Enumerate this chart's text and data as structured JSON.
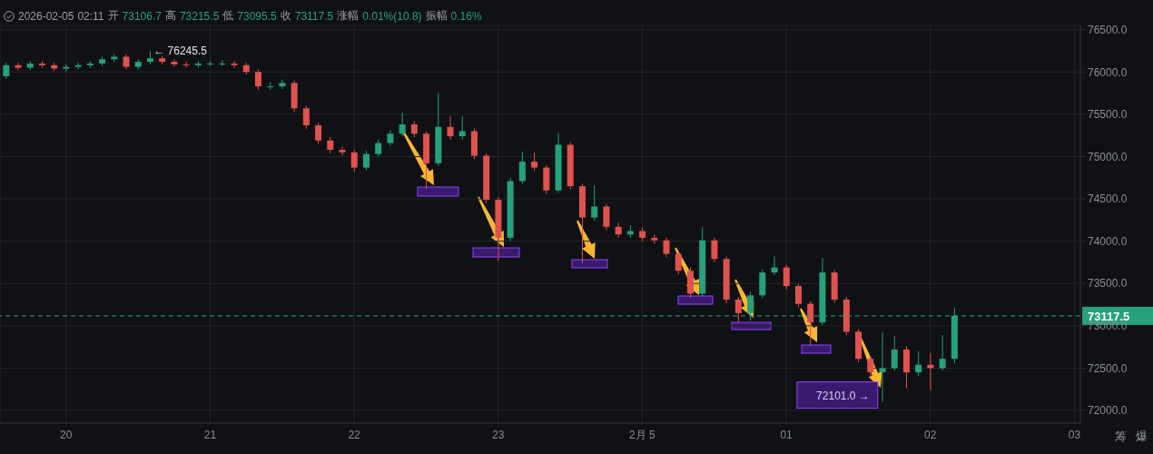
{
  "chart_data": {
    "type": "candlestick",
    "annotations": [
      "2026-02-05 02:11 开 73106.7 高 73215.5 低 73095.5 收 73117.5 涨幅 0.01%(10.8) 振幅 0.16%",
      "← 76245.5",
      "72101.0 →",
      "筹",
      "爆"
    ],
    "categories": [
      null,
      null,
      null,
      null,
      null,
      "20",
      null,
      null,
      null,
      null,
      null,
      null,
      null,
      null,
      null,
      null,
      null,
      "21",
      null,
      null,
      null,
      null,
      null,
      null,
      null,
      null,
      null,
      null,
      null,
      "22",
      null,
      null,
      null,
      null,
      null,
      null,
      null,
      null,
      null,
      null,
      null,
      "23",
      null,
      null,
      null,
      null,
      null,
      null,
      null,
      null,
      null,
      null,
      null,
      "2月 5",
      null,
      null,
      null,
      null,
      null,
      null,
      null,
      null,
      null,
      null,
      null,
      "01",
      null,
      null,
      null,
      null,
      null,
      null,
      null,
      null,
      null,
      null,
      null,
      "02",
      null,
      null,
      null,
      null,
      null,
      null,
      null,
      null,
      null,
      null,
      null,
      "03"
    ],
    "ohlc": [
      [
        75950,
        76110,
        75920,
        76080
      ],
      [
        76080,
        76110,
        76020,
        76050
      ],
      [
        76050,
        76130,
        76020,
        76100
      ],
      [
        76100,
        76130,
        76050,
        76080
      ],
      [
        76080,
        76110,
        76010,
        76040
      ],
      [
        76040,
        76090,
        76010,
        76060
      ],
      [
        76060,
        76110,
        76030,
        76080
      ],
      [
        76080,
        76130,
        76050,
        76100
      ],
      [
        76100,
        76180,
        76070,
        76150
      ],
      [
        76150,
        76210,
        76120,
        76180
      ],
      [
        76180,
        76210,
        76030,
        76060
      ],
      [
        76060,
        76150,
        76030,
        76120
      ],
      [
        76120,
        76245.5,
        76090,
        76160
      ],
      [
        76160,
        76190,
        76090,
        76120
      ],
      [
        76120,
        76150,
        76060,
        76090
      ],
      [
        76090,
        76120,
        76050,
        76080
      ],
      [
        76080,
        76130,
        76050,
        76100
      ],
      [
        76100,
        76130,
        76070,
        76100
      ],
      [
        76100,
        76140,
        76070,
        76100
      ],
      [
        76100,
        76130,
        76050,
        76080
      ],
      [
        76080,
        76110,
        75970,
        76000
      ],
      [
        76000,
        76030,
        75790,
        75830
      ],
      [
        75830,
        75880,
        75790,
        75830
      ],
      [
        75830,
        75910,
        75800,
        75870
      ],
      [
        75870,
        75900,
        75530,
        75570
      ],
      [
        75570,
        75600,
        75330,
        75370
      ],
      [
        75370,
        75400,
        75150,
        75190
      ],
      [
        75190,
        75230,
        75040,
        75080
      ],
      [
        75080,
        75120,
        75010,
        75050
      ],
      [
        75050,
        75080,
        74820,
        74870
      ],
      [
        74870,
        75070,
        74840,
        75030
      ],
      [
        75030,
        75200,
        75000,
        75160
      ],
      [
        75160,
        75310,
        75130,
        75270
      ],
      [
        75270,
        75520,
        75240,
        75380
      ],
      [
        75380,
        75420,
        75230,
        75270
      ],
      [
        75270,
        75300,
        74620,
        74920
      ],
      [
        74920,
        75750,
        74890,
        75350
      ],
      [
        75350,
        75480,
        75200,
        75240
      ],
      [
        75240,
        75480,
        75200,
        75300
      ],
      [
        75300,
        75330,
        74970,
        75010
      ],
      [
        75010,
        75040,
        74450,
        74490
      ],
      [
        74490,
        74520,
        73770,
        74040
      ],
      [
        74040,
        74750,
        74000,
        74710
      ],
      [
        74710,
        75060,
        74680,
        74940
      ],
      [
        74940,
        75050,
        74830,
        74870
      ],
      [
        74870,
        74900,
        74560,
        74600
      ],
      [
        74600,
        75280,
        74570,
        75140
      ],
      [
        75140,
        75170,
        74610,
        74650
      ],
      [
        74650,
        74680,
        73740,
        74280
      ],
      [
        74280,
        74660,
        74240,
        74410
      ],
      [
        74410,
        74440,
        74130,
        74170
      ],
      [
        74170,
        74220,
        74040,
        74080
      ],
      [
        74080,
        74190,
        74040,
        74120
      ],
      [
        74120,
        74160,
        74000,
        74040
      ],
      [
        74040,
        74080,
        73970,
        74010
      ],
      [
        74010,
        74040,
        73810,
        73850
      ],
      [
        73850,
        73880,
        73610,
        73650
      ],
      [
        73650,
        73690,
        73330,
        73380
      ],
      [
        73380,
        74170,
        73350,
        74010
      ],
      [
        74010,
        74040,
        73750,
        73790
      ],
      [
        73790,
        73820,
        73270,
        73310
      ],
      [
        73310,
        73340,
        73040,
        73150
      ],
      [
        73150,
        73400,
        73060,
        73360
      ],
      [
        73360,
        73670,
        73330,
        73630
      ],
      [
        73630,
        73820,
        73600,
        73690
      ],
      [
        73690,
        73720,
        73430,
        73470
      ],
      [
        73470,
        73500,
        73220,
        73260
      ],
      [
        73260,
        73290,
        72770,
        73040
      ],
      [
        73040,
        73800,
        73010,
        73630
      ],
      [
        73630,
        73660,
        73270,
        73310
      ],
      [
        73310,
        73340,
        72890,
        72930
      ],
      [
        72930,
        72960,
        72570,
        72610
      ],
      [
        72610,
        72640,
        72380,
        72450
      ],
      [
        72450,
        72920,
        72101,
        72500
      ],
      [
        72500,
        72880,
        72470,
        72720
      ],
      [
        72720,
        72760,
        72260,
        72450
      ],
      [
        72450,
        72700,
        72410,
        72540
      ],
      [
        72540,
        72680,
        72240,
        72500
      ],
      [
        72500,
        72890,
        72470,
        72610
      ],
      [
        72610,
        73215.5,
        72560,
        73117.5
      ],
      null,
      null,
      null,
      null,
      null,
      null,
      null,
      null,
      null,
      null
    ],
    "ylim": [
      71850,
      76550
    ],
    "yticks": [
      {
        "value": 72000,
        "label": "72000.0"
      },
      {
        "value": 72500,
        "label": "72500.0"
      },
      {
        "value": 73000,
        "label": "73000.0"
      },
      {
        "value": 73500,
        "label": "73500.0"
      },
      {
        "value": 74000,
        "label": "74000.0"
      },
      {
        "value": 74500,
        "label": "74500.0"
      },
      {
        "value": 75000,
        "label": "75000.0"
      },
      {
        "value": 75500,
        "label": "75500.0"
      },
      {
        "value": 76000,
        "label": "76000.0"
      },
      {
        "value": 76500,
        "label": "76500.0"
      }
    ],
    "ref_lines": [
      {
        "axis": "y",
        "value": 73117.5,
        "label": "73117.5",
        "color": "#26a17b",
        "line_style": "dashed"
      }
    ],
    "grid": true
  }
}
